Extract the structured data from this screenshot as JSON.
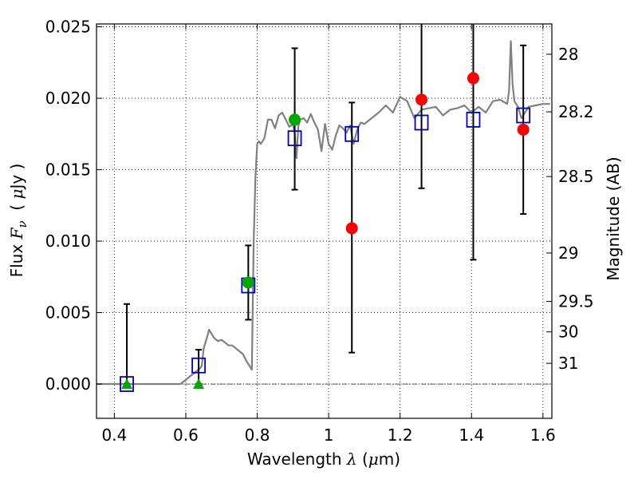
{
  "chart_data": {
    "type": "scatter",
    "title": "",
    "xlabel": "Wavelength  λ (μm)",
    "ylabel": "Flux  F_ν  ( μJy )",
    "ylabel_parts": {
      "prefix": "Flux ",
      "symbol": "F",
      "subscript": "ν",
      "unit_open": "( ",
      "mu": "μ",
      "unit": "Jy )"
    },
    "xlabel_parts": {
      "prefix": "Wavelength  ",
      "symbol": "λ",
      "unit_open": " (",
      "mu": "μ",
      "unit": "m)"
    },
    "y2label": "Magnitude (AB)",
    "xlim": [
      0.35,
      1.625
    ],
    "ylim": [
      -0.0024,
      0.0252
    ],
    "grid": true,
    "x_ticks": [
      {
        "value": 0.4,
        "label": "0.4"
      },
      {
        "value": 0.6,
        "label": "0.6"
      },
      {
        "value": 0.8,
        "label": "0.8"
      },
      {
        "value": 1.0,
        "label": "1"
      },
      {
        "value": 1.2,
        "label": "1.2"
      },
      {
        "value": 1.4,
        "label": "1.4"
      },
      {
        "value": 1.6,
        "label": "1.6"
      }
    ],
    "y_ticks": [
      {
        "value": 0.0,
        "label": "0.000"
      },
      {
        "value": 0.005,
        "label": "0.005"
      },
      {
        "value": 0.01,
        "label": "0.010"
      },
      {
        "value": 0.015,
        "label": "0.015"
      },
      {
        "value": 0.02,
        "label": "0.020"
      },
      {
        "value": 0.025,
        "label": "0.025"
      }
    ],
    "y2_ticks": [
      {
        "flux": 0.02308,
        "label": "28"
      },
      {
        "flux": 0.01905,
        "label": "28.2"
      },
      {
        "flux": 0.01452,
        "label": "28.5"
      },
      {
        "flux": 0.00917,
        "label": "29"
      },
      {
        "flux": 0.00578,
        "label": "29.5"
      },
      {
        "flux": 0.00365,
        "label": "30"
      },
      {
        "flux": 0.00145,
        "label": "31"
      }
    ],
    "colors": {
      "model": "#808080",
      "observed": "#ff0000",
      "observed_alt": "#00aa00",
      "model_band": "#0000cc",
      "errorbar": "#000000"
    },
    "model_spectrum": {
      "x": [
        0.35,
        0.585,
        0.6,
        0.61,
        0.62,
        0.63,
        0.64,
        0.645,
        0.65,
        0.66,
        0.665,
        0.67,
        0.68,
        0.69,
        0.7,
        0.71,
        0.72,
        0.73,
        0.74,
        0.75,
        0.76,
        0.77,
        0.78,
        0.785,
        0.79,
        0.795,
        0.8,
        0.805,
        0.81,
        0.82,
        0.83,
        0.84,
        0.85,
        0.86,
        0.87,
        0.88,
        0.89,
        0.9,
        0.905,
        0.91,
        0.915,
        0.92,
        0.93,
        0.94,
        0.95,
        0.96,
        0.97,
        0.98,
        0.99,
        1.0,
        1.01,
        1.02,
        1.03,
        1.04,
        1.05,
        1.06,
        1.07,
        1.08,
        1.09,
        1.1,
        1.12,
        1.14,
        1.16,
        1.18,
        1.2,
        1.22,
        1.24,
        1.26,
        1.28,
        1.3,
        1.32,
        1.34,
        1.36,
        1.38,
        1.4,
        1.42,
        1.44,
        1.46,
        1.48,
        1.5,
        1.505,
        1.51,
        1.515,
        1.52,
        1.53,
        1.54,
        1.56,
        1.58,
        1.6,
        1.62
      ],
      "y": [
        0.0,
        0.0,
        0.0003,
        0.0005,
        0.0007,
        0.0009,
        0.0011,
        0.0013,
        0.0025,
        0.0033,
        0.0038,
        0.0036,
        0.0032,
        0.003,
        0.0031,
        0.0029,
        0.0027,
        0.0027,
        0.0025,
        0.0023,
        0.0021,
        0.0016,
        0.0012,
        0.001,
        0.01,
        0.0145,
        0.0168,
        0.017,
        0.0168,
        0.0172,
        0.0185,
        0.0185,
        0.0179,
        0.0188,
        0.019,
        0.0185,
        0.018,
        0.0182,
        0.0175,
        0.0158,
        0.018,
        0.0185,
        0.0186,
        0.0183,
        0.0189,
        0.0183,
        0.0178,
        0.0163,
        0.0182,
        0.0168,
        0.0164,
        0.0174,
        0.0181,
        0.0179,
        0.0176,
        0.0181,
        0.0168,
        0.0178,
        0.0183,
        0.0182,
        0.0186,
        0.019,
        0.0195,
        0.019,
        0.0201,
        0.0198,
        0.0186,
        0.0192,
        0.0193,
        0.0194,
        0.0188,
        0.0192,
        0.0193,
        0.0195,
        0.019,
        0.0194,
        0.019,
        0.0198,
        0.0199,
        0.0196,
        0.0205,
        0.024,
        0.021,
        0.0198,
        0.0194,
        0.0186,
        0.0194,
        0.0195,
        0.0196,
        0.0196
      ]
    },
    "model_bands": [
      {
        "x": 0.435,
        "y": 0.0
      },
      {
        "x": 0.636,
        "y": 0.0013
      },
      {
        "x": 0.775,
        "y": 0.0069
      },
      {
        "x": 0.905,
        "y": 0.0172
      },
      {
        "x": 1.065,
        "y": 0.0175
      },
      {
        "x": 1.26,
        "y": 0.0183
      },
      {
        "x": 1.405,
        "y": 0.0185
      },
      {
        "x": 1.545,
        "y": 0.0188
      }
    ],
    "observed_upper_limits": [
      {
        "x": 0.435,
        "y": 0.0
      },
      {
        "x": 0.636,
        "y": 0.0
      }
    ],
    "observed_alt_points": [
      {
        "x": 0.775,
        "y": 0.0071
      },
      {
        "x": 0.905,
        "y": 0.0185
      }
    ],
    "observed_points": [
      {
        "x": 1.065,
        "y": 0.0109
      },
      {
        "x": 1.26,
        "y": 0.0199
      },
      {
        "x": 1.405,
        "y": 0.0214
      },
      {
        "x": 1.545,
        "y": 0.0178
      }
    ],
    "error_bars": [
      {
        "x": 0.435,
        "low": 0.0,
        "high": 0.0056
      },
      {
        "x": 0.636,
        "low": 0.0,
        "high": 0.0024
      },
      {
        "x": 0.775,
        "low": 0.0045,
        "high": 0.0097
      },
      {
        "x": 0.905,
        "low": 0.0136,
        "high": 0.0235
      },
      {
        "x": 1.065,
        "low": 0.0022,
        "high": 0.0197
      },
      {
        "x": 1.26,
        "low": 0.0137,
        "high": 0.0262
      },
      {
        "x": 1.405,
        "low": 0.0087,
        "high": 0.0262
      },
      {
        "x": 1.545,
        "low": 0.0119,
        "high": 0.0237
      }
    ]
  }
}
